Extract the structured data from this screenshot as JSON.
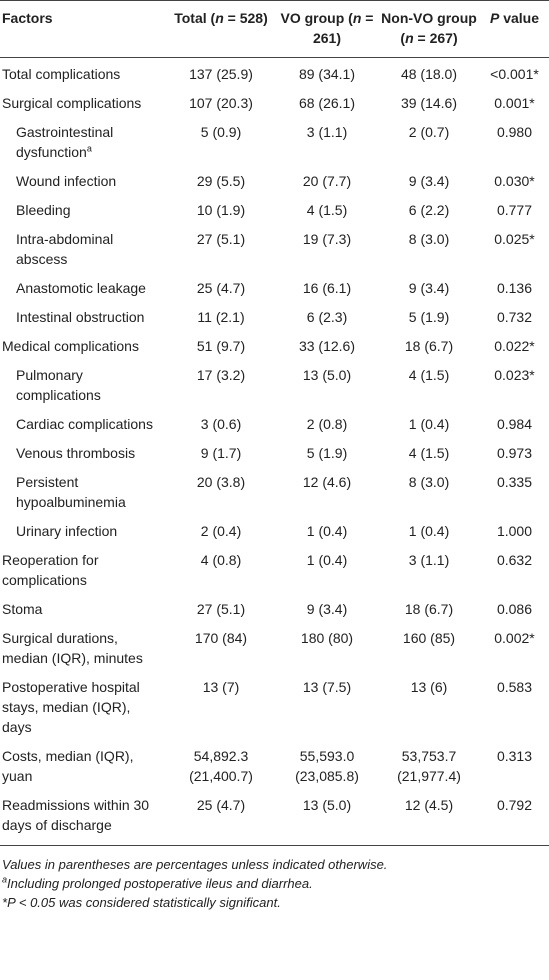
{
  "table": {
    "header": [
      [
        {
          "text": "Factors"
        }
      ],
      [
        {
          "text": "Total ("
        },
        {
          "text": "n",
          "italic": true
        },
        {
          "text": " = 528)"
        }
      ],
      [
        {
          "text": "VO group ("
        },
        {
          "text": "n",
          "italic": true
        },
        {
          "text": " = 261)"
        }
      ],
      [
        {
          "text": "Non-VO group ("
        },
        {
          "text": "n",
          "italic": true
        },
        {
          "text": " = 267)"
        }
      ],
      [
        {
          "text": "P",
          "italic": true
        },
        {
          "text": " value"
        }
      ]
    ],
    "rows": [
      {
        "label": "Total complications",
        "cells": [
          "137 (25.9)",
          "89 (34.1)",
          "48 (18.0)",
          "<0.001*"
        ]
      },
      {
        "label": "Surgical complications",
        "cells": [
          "107 (20.3)",
          "68 (26.1)",
          "39 (14.6)",
          "0.001*"
        ]
      },
      {
        "label": "Gastrointestinal dysfunction",
        "sup": "a",
        "indent": true,
        "cells": [
          "5 (0.9)",
          "3 (1.1)",
          "2 (0.7)",
          "0.980"
        ]
      },
      {
        "label": "Wound infection",
        "indent": true,
        "cells": [
          "29 (5.5)",
          "20 (7.7)",
          "9 (3.4)",
          "0.030*"
        ]
      },
      {
        "label": "Bleeding",
        "indent": true,
        "cells": [
          "10 (1.9)",
          "4 (1.5)",
          "6 (2.2)",
          "0.777"
        ]
      },
      {
        "label": "Intra-abdominal abscess",
        "indent": true,
        "cells": [
          "27 (5.1)",
          "19 (7.3)",
          "8 (3.0)",
          "0.025*"
        ]
      },
      {
        "label": "Anastomotic leakage",
        "indent": true,
        "cells": [
          "25 (4.7)",
          "16 (6.1)",
          "9 (3.4)",
          "0.136"
        ]
      },
      {
        "label": "Intestinal obstruction",
        "indent": true,
        "cells": [
          "11 (2.1)",
          "6 (2.3)",
          "5 (1.9)",
          "0.732"
        ]
      },
      {
        "label": "Medical complications",
        "cells": [
          "51 (9.7)",
          "33 (12.6)",
          "18 (6.7)",
          "0.022*"
        ]
      },
      {
        "label": "Pulmonary complications",
        "indent": true,
        "cells": [
          "17 (3.2)",
          "13 (5.0)",
          "4 (1.5)",
          "0.023*"
        ]
      },
      {
        "label": "Cardiac complications",
        "indent": true,
        "cells": [
          "3 (0.6)",
          "2 (0.8)",
          "1 (0.4)",
          "0.984"
        ]
      },
      {
        "label": "Venous thrombosis",
        "indent": true,
        "cells": [
          "9 (1.7)",
          "5 (1.9)",
          "4 (1.5)",
          "0.973"
        ]
      },
      {
        "label": "Persistent hypoalbuminemia",
        "indent": true,
        "cells": [
          "20 (3.8)",
          "12 (4.6)",
          "8 (3.0)",
          "0.335"
        ]
      },
      {
        "label": "Urinary infection",
        "indent": true,
        "cells": [
          "2 (0.4)",
          "1 (0.4)",
          "1 (0.4)",
          "1.000"
        ]
      },
      {
        "label": "Reoperation for complications",
        "cells": [
          "4 (0.8)",
          "1 (0.4)",
          "3 (1.1)",
          "0.632"
        ]
      },
      {
        "label": "Stoma",
        "cells": [
          "27 (5.1)",
          "9 (3.4)",
          "18 (6.7)",
          "0.086"
        ]
      },
      {
        "label": "Surgical durations, median (IQR), minutes",
        "cells": [
          "170 (84)",
          "180 (80)",
          "160 (85)",
          "0.002*"
        ]
      },
      {
        "label": "Postoperative hospital stays, median (IQR), days",
        "cells": [
          "13 (7)",
          "13 (7.5)",
          "13 (6)",
          "0.583"
        ]
      },
      {
        "label": "Costs, median (IQR), yuan",
        "cells": [
          "54,892.3 (21,400.7)",
          "55,593.0 (23,085.8)",
          "53,753.7 (21,977.4)",
          "0.313"
        ]
      },
      {
        "label": "Readmissions within 30 days of discharge",
        "cells": [
          "25 (4.7)",
          "13 (5.0)",
          "12 (4.5)",
          "0.792"
        ]
      }
    ]
  },
  "footnotes": [
    [
      {
        "text": "Values in parentheses are percentages unless indicated otherwise."
      }
    ],
    [
      {
        "text": "a",
        "sup": true
      },
      {
        "text": "Including prolonged postoperative ileus and diarrhea."
      }
    ],
    [
      {
        "text": "*"
      },
      {
        "text": "P"
      },
      {
        "text": " < 0.05 was considered statistically significant."
      }
    ]
  ]
}
